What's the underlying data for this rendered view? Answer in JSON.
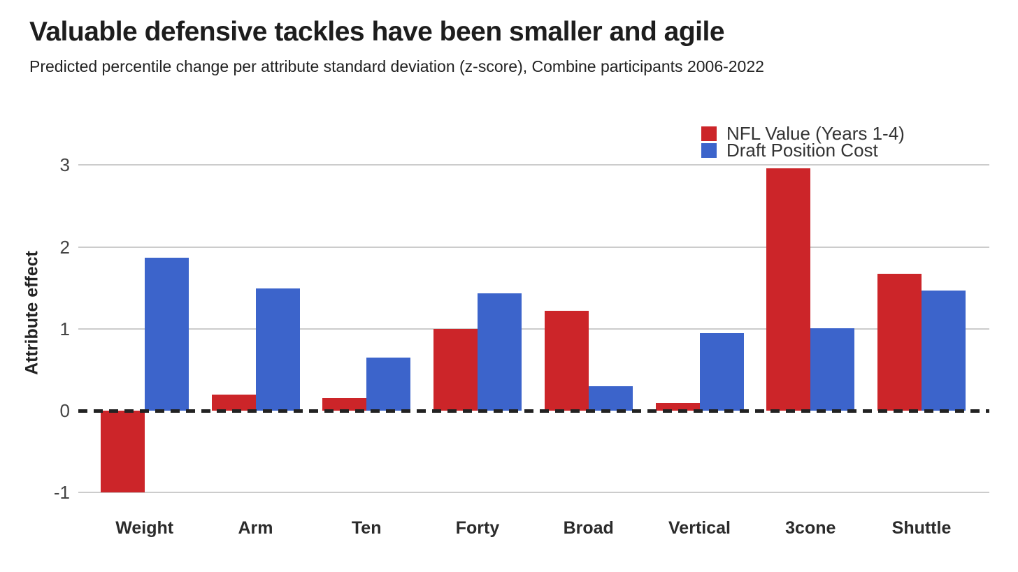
{
  "header": {
    "title": "Valuable defensive tackles have been smaller and agile",
    "subtitle": "Predicted percentile change per attribute standard deviation (z-score), Combine participants 2006-2022"
  },
  "chart_data": {
    "type": "bar",
    "grouped": true,
    "title": "Valuable defensive tackles have been smaller and agile",
    "subtitle": "Predicted percentile change per attribute standard deviation (z-score), Combine participants 2006-2022",
    "categories": [
      "Weight",
      "Arm",
      "Ten",
      "Forty",
      "Broad",
      "Vertical",
      "3cone",
      "Shuttle"
    ],
    "series": [
      {
        "name": "NFL Value (Years 1-4)",
        "color": "#cc2529",
        "values": [
          -1.0,
          0.2,
          0.15,
          1.0,
          1.22,
          0.09,
          2.96,
          1.67
        ]
      },
      {
        "name": "Draft Position Cost",
        "color": "#3c64cb",
        "values": [
          1.87,
          1.49,
          0.65,
          1.43,
          0.3,
          0.95,
          1.01,
          1.47
        ]
      }
    ],
    "xlabel": "",
    "ylabel": "Attribute effect",
    "ylim": [
      -1,
      3
    ],
    "yticks": [
      3,
      2,
      1,
      0,
      -1
    ],
    "ytick_labels": [
      "3",
      "2",
      "1",
      "0",
      "-1"
    ],
    "zero_line_style": "dashed",
    "grid": "horizontal",
    "legend_position": "top-right",
    "colors": {
      "grid": "#cccccc",
      "zero_line": "#222222",
      "axis_text": "#444444",
      "category_text": "#2b2b2b",
      "legend_text": "#333333"
    }
  }
}
